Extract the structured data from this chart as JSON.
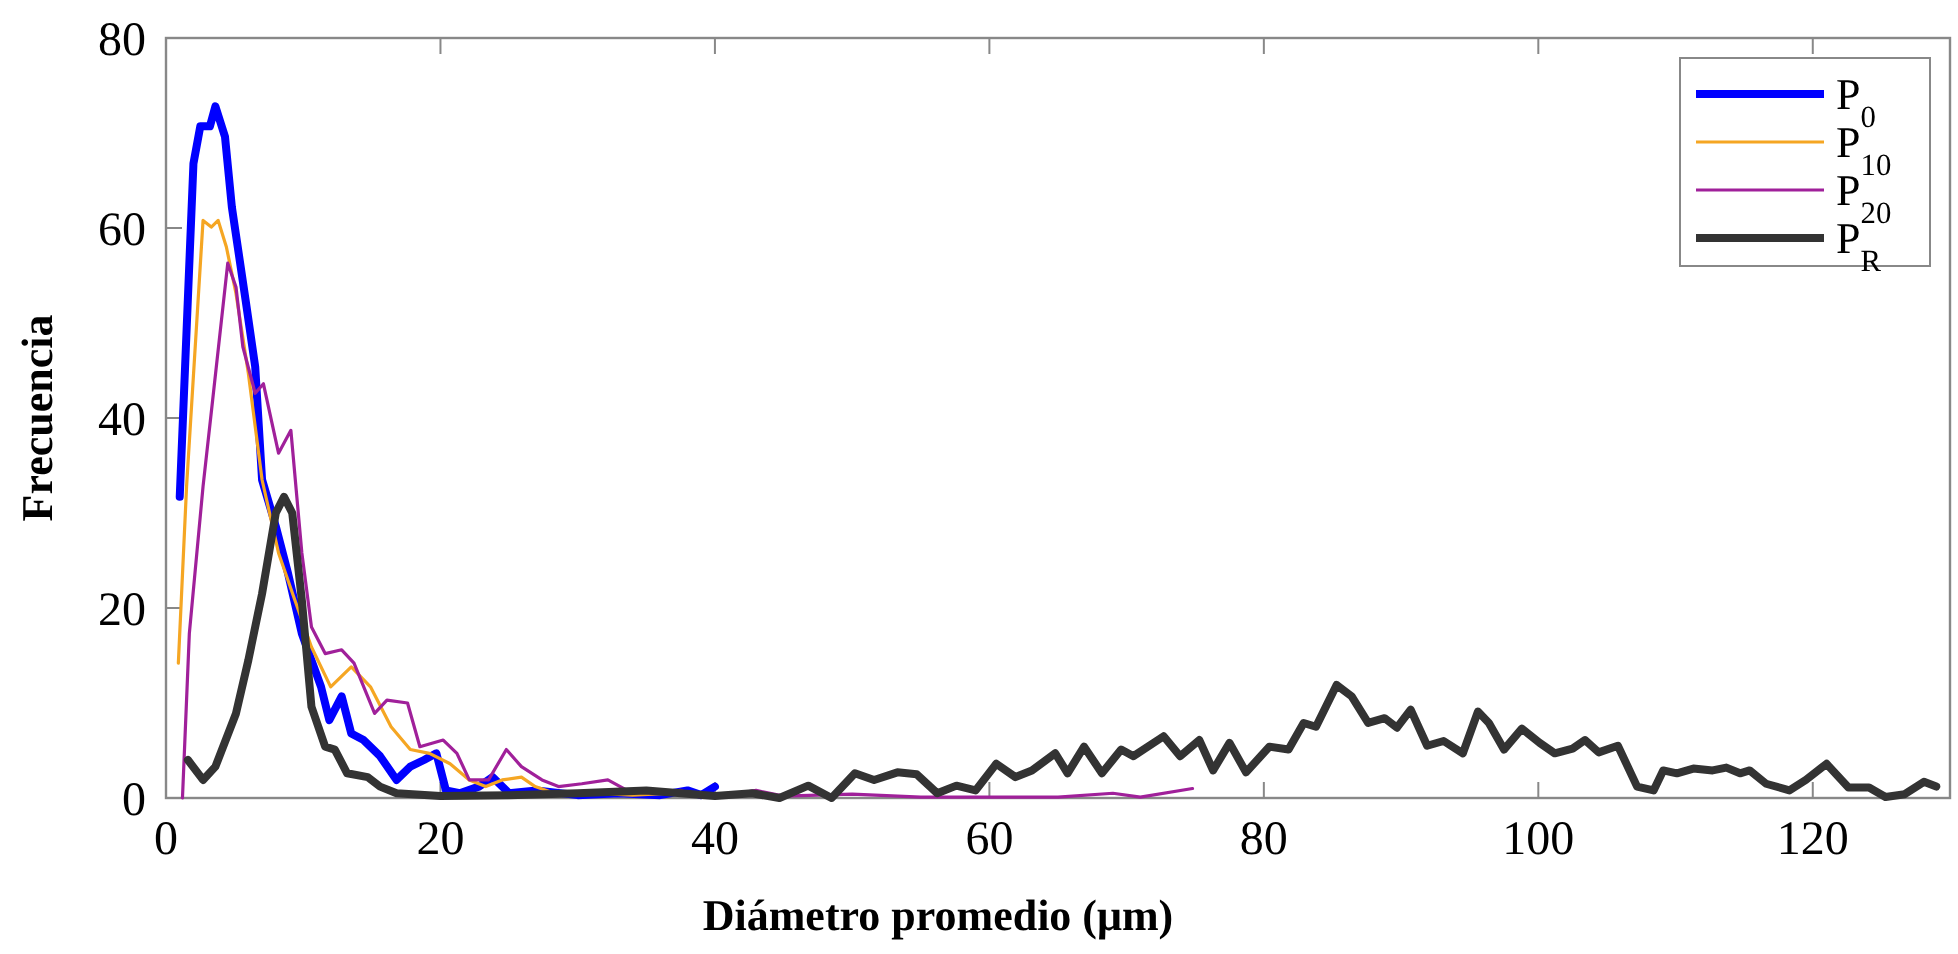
{
  "chart_data": {
    "type": "line",
    "xlabel": "Diámetro promedio (μm)",
    "ylabel": "Frecuencia",
    "xlim": [
      0,
      130
    ],
    "xticks": [
      0,
      20,
      40,
      60,
      80,
      100,
      120
    ],
    "ylim": [
      0,
      80
    ],
    "yticks": [
      0,
      20,
      40,
      60,
      80
    ],
    "grid": false,
    "legend": "top right",
    "series": [
      {
        "name": "P$_{0}$",
        "color": "#0000ff",
        "x": [
          1.0,
          2.0,
          2.5,
          3.2,
          3.6,
          4.3,
          4.8,
          5.8,
          6.5,
          7.0,
          8.0,
          8.9,
          9.9,
          10.6,
          11.3,
          11.9,
          12.8,
          13.5,
          14.4,
          15.6,
          16.8,
          17.8,
          18.8,
          19.7,
          20.4,
          21.4,
          22.8,
          23.8,
          25,
          27,
          30,
          33,
          36,
          38,
          39,
          40
        ],
        "values": [
          31.7,
          66.8,
          70.7,
          70.7,
          72.8,
          69.6,
          62.2,
          52.4,
          45.4,
          33.5,
          28.6,
          23.6,
          17.3,
          14.5,
          11.7,
          8.2,
          10.7,
          6.8,
          6.1,
          4.4,
          1.9,
          3.3,
          4.0,
          4.7,
          0.8,
          0.5,
          1.2,
          2.2,
          0.5,
          0.8,
          0.3,
          0.5,
          0.3,
          0.8,
          0.3,
          1.2
        ]
      },
      {
        "name": "P$_{10}$",
        "color": "#f5a623",
        "x": [
          0.9,
          1.5,
          2.7,
          3.3,
          3.8,
          4.4,
          5.1,
          6.0,
          7.0,
          8.2,
          9.4,
          10.6,
          12.0,
          13.5,
          14.9,
          16.4,
          17.8,
          19.2,
          20.7,
          22.1,
          23.3,
          24.5,
          25.9,
          26.9,
          28.3,
          31,
          34,
          37,
          40
        ],
        "values": [
          14.2,
          32.8,
          60.8,
          60.1,
          60.8,
          58,
          53.1,
          44.7,
          33.5,
          25.8,
          20.8,
          15.9,
          11.7,
          13.8,
          11.7,
          7.5,
          5.1,
          4.7,
          3.6,
          1.9,
          1.2,
          1.9,
          2.2,
          1.2,
          0.5,
          0.5,
          0.3,
          0.5,
          0.3
        ]
      },
      {
        "name": "P$_{20}$",
        "color": "#a0209a",
        "x": [
          1.2,
          1.7,
          2.7,
          3.4,
          4.5,
          5.1,
          5.6,
          6.5,
          7.1,
          8.2,
          9.1,
          9.9,
          10.6,
          11.6,
          12.8,
          13.7,
          15.2,
          16.1,
          17.6,
          18.5,
          20.2,
          21.2,
          22.1,
          23.5,
          24.8,
          25.9,
          27.4,
          28.6,
          30.3,
          32.2,
          33.6,
          35.5,
          37.5,
          38.9,
          41,
          43,
          45,
          50,
          55,
          60,
          65,
          69,
          71,
          74.8
        ],
        "values": [
          0,
          17.3,
          32.8,
          41.9,
          56.3,
          53.8,
          47.5,
          42.6,
          43.6,
          36.3,
          38.7,
          25.8,
          18,
          15.2,
          15.6,
          14.2,
          8.9,
          10.3,
          10,
          5.4,
          6.1,
          4.7,
          1.9,
          1.9,
          5.1,
          3.3,
          1.9,
          1.2,
          1.5,
          1.9,
          0.8,
          0.5,
          0.8,
          0.1,
          0.3,
          0.8,
          0.2,
          0.4,
          0.1,
          0.1,
          0.1,
          0.5,
          0.1,
          1.0
        ]
      },
      {
        "name": "P$_{R}$",
        "color": "#333333",
        "x": [
          1.6,
          2.7,
          3.6,
          5.1,
          6.0,
          7.0,
          8.0,
          8.6,
          9.2,
          9.9,
          10.6,
          11.6,
          12.3,
          13.2,
          14.7,
          15.6,
          16.8,
          20,
          25,
          30,
          35,
          40,
          42.7,
          44.7,
          46.8,
          48.5,
          50.2,
          51.6,
          53.3,
          54.7,
          56.2,
          57.6,
          59.0,
          60.5,
          61.9,
          63.1,
          64.8,
          65.7,
          66.9,
          68.2,
          69.6,
          70.5,
          72.7,
          73.9,
          75.3,
          76.3,
          77.5,
          78.7,
          80.4,
          81.8,
          82.9,
          83.8,
          85.3,
          86.4,
          87.6,
          88.8,
          89.7,
          90.7,
          91.9,
          93.1,
          94.5,
          95.6,
          96.4,
          97.5,
          98.8,
          100.1,
          101.2,
          102.5,
          103.4,
          104.4,
          105.8,
          107.2,
          108.4,
          109.1,
          110.1,
          111.3,
          112.7,
          113.7,
          114.7,
          115.4,
          116.6,
          118.3,
          119.5,
          121.0,
          122.6,
          124.1,
          125.3,
          126.7,
          128.1,
          129
        ],
        "values": [
          4.0,
          1.9,
          3.3,
          8.9,
          14.5,
          21.5,
          30,
          31.7,
          30,
          20.8,
          9.6,
          5.4,
          5.1,
          2.6,
          2.2,
          1.2,
          0.5,
          0.2,
          0.3,
          0.5,
          0.8,
          0.2,
          0.5,
          0,
          1.3,
          0,
          2.6,
          1.9,
          2.7,
          2.5,
          0.5,
          1.3,
          0.8,
          3.6,
          2.2,
          2.9,
          4.7,
          2.6,
          5.4,
          2.6,
          5.1,
          4.4,
          6.5,
          4.4,
          6.1,
          2.9,
          5.8,
          2.7,
          5.4,
          5.1,
          7.9,
          7.5,
          11.9,
          10.7,
          7.9,
          8.4,
          7.4,
          9.3,
          5.5,
          6.0,
          4.7,
          9.1,
          7.9,
          5.1,
          7.3,
          5.8,
          4.7,
          5.2,
          6.1,
          4.8,
          5.5,
          1.2,
          0.8,
          2.9,
          2.6,
          3.1,
          2.9,
          3.2,
          2.6,
          2.9,
          1.5,
          0.8,
          1.9,
          3.6,
          1.1,
          1.1,
          0.1,
          0.4,
          1.7,
          1.2
        ]
      }
    ]
  }
}
